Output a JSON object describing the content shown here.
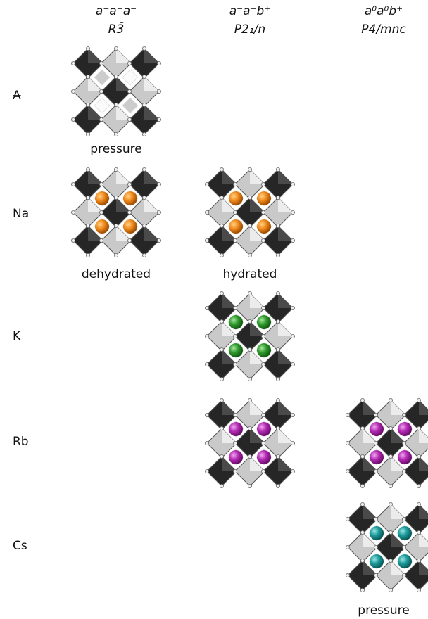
{
  "columns": [
    {
      "tilt": "a⁻a⁻a⁻",
      "space_group": "R3̄"
    },
    {
      "tilt": "a⁻a⁻b⁺",
      "space_group": "P2₁/n"
    },
    {
      "tilt": "a⁰a⁰b⁺",
      "space_group": "P4/mnc"
    }
  ],
  "rows": [
    "A",
    "Na",
    "K",
    "Rb",
    "Cs"
  ],
  "captions": [
    "pressure",
    "dehydrated",
    "hydrated",
    "pressure"
  ]
}
